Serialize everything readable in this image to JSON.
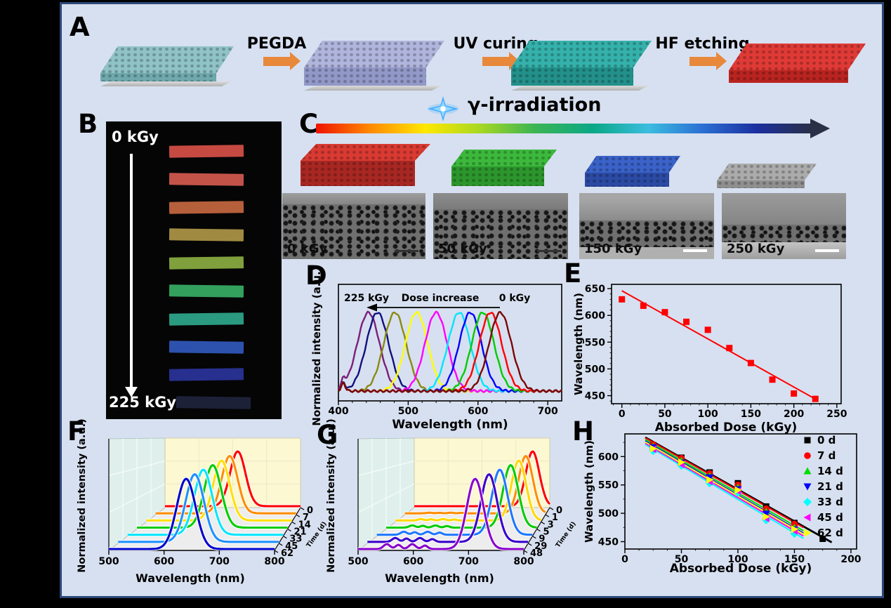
{
  "figure": {
    "background": "#000000",
    "panel_bg": "#d7e0f0",
    "border_color": "#2b4878"
  },
  "panels": {
    "a": {
      "label": "A",
      "steps": [
        "PEGDA",
        "UV curing",
        "HF etching"
      ],
      "arrow_color": "#e8883b",
      "slabs": [
        {
          "name": "silica-opal-film",
          "top": "#8fc3c6",
          "front": "#6fa9ad"
        },
        {
          "name": "pegda-infiltrated",
          "top": "#b0b5dd",
          "front": "#9298c8"
        },
        {
          "name": "uv-cured",
          "top": "#35b1ab",
          "front": "#23908a"
        },
        {
          "name": "inverse-opal",
          "top": "#e03a36",
          "front": "#b92420"
        }
      ]
    },
    "b": {
      "label": "B",
      "top_label": "0 kGy",
      "bottom_label": "225 kGy",
      "strip_colors": [
        "#c64a42",
        "#c35349",
        "#b6603b",
        "#a08a42",
        "#7fa03c",
        "#33a05e",
        "#2a9a80",
        "#2d52ae",
        "#27308f",
        "#1c2138"
      ]
    },
    "c": {
      "label": "C",
      "title": "γ-irradiation",
      "gradient_stops": [
        "#ee1300",
        "#ff8a00",
        "#ffe800",
        "#a8d822",
        "#3cb553",
        "#0aa887",
        "#3bbde0",
        "#2b6fd4",
        "#1b2f9e",
        "#2a3046"
      ],
      "structures": [
        {
          "top": "#d93a32",
          "front": "#a82722"
        },
        {
          "top": "#3cb93c",
          "front": "#2c962c"
        },
        {
          "top": "#3a62c8",
          "front": "#2b4aa3"
        },
        {
          "top": "#ababab",
          "front": "#8f8f8f"
        }
      ],
      "sem_images": [
        {
          "label": "0 kGy"
        },
        {
          "label": "50 kGy"
        },
        {
          "label": "150 kGy"
        },
        {
          "label": "250 kGy"
        }
      ]
    },
    "d": {
      "label": "D"
    },
    "e": {
      "label": "E"
    },
    "f": {
      "label": "F"
    },
    "g": {
      "label": "G"
    },
    "h": {
      "label": "H"
    }
  },
  "chart_data": [
    {
      "id": "D",
      "type": "line",
      "xlabel": "Wavelength (nm)",
      "ylabel": "Normalized intensity (a.u.)",
      "xlim": [
        400,
        720
      ],
      "xticks": [
        400,
        500,
        600,
        700
      ],
      "annotation": {
        "left": "225 kGy",
        "center": "Dose increase",
        "right": "0 kGy"
      },
      "series": [
        {
          "color": "#7a1f7a",
          "peak_nm": 443
        },
        {
          "color": "#10107e",
          "peak_nm": 456
        },
        {
          "color": "#8a8a10",
          "peak_nm": 481
        },
        {
          "color": "#ffff00",
          "peak_nm": 512
        },
        {
          "color": "#ff00ff",
          "peak_nm": 540
        },
        {
          "color": "#00e5ff",
          "peak_nm": 573
        },
        {
          "color": "#0000ff",
          "peak_nm": 589
        },
        {
          "color": "#00cc00",
          "peak_nm": 607
        },
        {
          "color": "#ff0000",
          "peak_nm": 618
        },
        {
          "color": "#7c0707",
          "peak_nm": 632
        }
      ]
    },
    {
      "id": "E",
      "type": "scatter",
      "xlabel": "Absorbed Dose (kGy)",
      "ylabel": "Wavelength (nm)",
      "xticks": [
        0,
        50,
        100,
        150,
        200,
        250
      ],
      "yticks": [
        450,
        500,
        550,
        600,
        650
      ],
      "xlim": [
        -12,
        255
      ],
      "ylim": [
        435,
        658
      ],
      "marker": "square",
      "color": "#ff0000",
      "x": [
        0,
        25,
        50,
        75,
        100,
        125,
        150,
        175,
        200,
        225
      ],
      "y": [
        630,
        618,
        606,
        588,
        573,
        539,
        511,
        480,
        454,
        444
      ],
      "fit": {
        "x": [
          0,
          228
        ],
        "y": [
          646,
          441
        ]
      }
    },
    {
      "id": "F",
      "type": "waterfall",
      "xlabel": "Wavelength (nm)",
      "ylabel": "Normalized intensity (a.u.)",
      "zlabel": "Time (d)",
      "xlim": [
        500,
        800
      ],
      "xticks": [
        500,
        600,
        700,
        800
      ],
      "noise": false,
      "series": [
        {
          "z": "0",
          "color": "#ff0000",
          "peak_nm": 661
        },
        {
          "z": "7",
          "color": "#ff8c00",
          "peak_nm": 658
        },
        {
          "z": "14",
          "color": "#ffe000",
          "peak_nm": 655
        },
        {
          "z": "21",
          "color": "#00cc00",
          "peak_nm": 651
        },
        {
          "z": "33",
          "color": "#00e5ff",
          "peak_nm": 646
        },
        {
          "z": "45",
          "color": "#1e90ff",
          "peak_nm": 643
        },
        {
          "z": "62",
          "color": "#0000cd",
          "peak_nm": 640
        }
      ]
    },
    {
      "id": "G",
      "type": "waterfall",
      "xlabel": "Wavelength (nm)",
      "ylabel": "Normalized intensity (a.u.)",
      "zlabel": "Time (d)",
      "xlim": [
        500,
        800
      ],
      "xticks": [
        500,
        600,
        700,
        800
      ],
      "noise": true,
      "series": [
        {
          "z": "0",
          "color": "#ff0000",
          "peak_nm": 762
        },
        {
          "z": "1",
          "color": "#ff8c00",
          "peak_nm": 758
        },
        {
          "z": "3",
          "color": "#ffd700",
          "peak_nm": 754
        },
        {
          "z": "5",
          "color": "#00cc00",
          "peak_nm": 748
        },
        {
          "z": "9",
          "color": "#1e78ff",
          "peak_nm": 737
        },
        {
          "z": "29",
          "color": "#3a00cc",
          "peak_nm": 727
        },
        {
          "z": "48",
          "color": "#8800cc",
          "peak_nm": 712
        }
      ]
    },
    {
      "id": "H",
      "type": "scatter-multi",
      "xlabel": "Absorbed Dose (kGy)",
      "ylabel": "Wavelength (nm)",
      "xticks": [
        0,
        50,
        100,
        150,
        200
      ],
      "yticks": [
        450,
        500,
        550,
        600
      ],
      "xlim": [
        0,
        205
      ],
      "ylim": [
        437,
        640
      ],
      "series": [
        {
          "name": "0 d",
          "color": "#000000",
          "marker": "square",
          "x": [
            25,
            50,
            75,
            100,
            125,
            150,
            175
          ],
          "y": [
            620,
            598,
            572,
            553,
            512,
            483,
            455
          ]
        },
        {
          "name": "7 d",
          "color": "#ff0000",
          "marker": "circle",
          "x": [
            25,
            50,
            75,
            100,
            125,
            150
          ],
          "y": [
            621,
            597,
            570,
            550,
            508,
            481
          ]
        },
        {
          "name": "14 d",
          "color": "#00dd00",
          "marker": "triangle-up",
          "x": [
            25,
            50,
            75,
            100,
            125,
            150
          ],
          "y": [
            618,
            593,
            566,
            546,
            503,
            475
          ]
        },
        {
          "name": "21 d",
          "color": "#0000ff",
          "marker": "triangle-down",
          "x": [
            25,
            50,
            75,
            100,
            125,
            150
          ],
          "y": [
            616,
            589,
            563,
            542,
            499,
            471
          ]
        },
        {
          "name": "33 d",
          "color": "#00ffff",
          "marker": "diamond",
          "x": [
            25,
            50,
            75,
            100,
            125,
            150
          ],
          "y": [
            610,
            584,
            553,
            536,
            488,
            464
          ]
        },
        {
          "name": "45 d",
          "color": "#ff00ff",
          "marker": "triangle-left",
          "x": [
            25,
            50,
            75,
            100,
            125,
            150
          ],
          "y": [
            613,
            586,
            556,
            539,
            491,
            469
          ]
        },
        {
          "name": "62 d",
          "color": "#ffff00",
          "marker": "triangle-right",
          "x": [
            25,
            50,
            75,
            100,
            125,
            150
          ],
          "y": [
            614,
            590,
            559,
            541,
            494,
            472
          ]
        }
      ]
    }
  ]
}
